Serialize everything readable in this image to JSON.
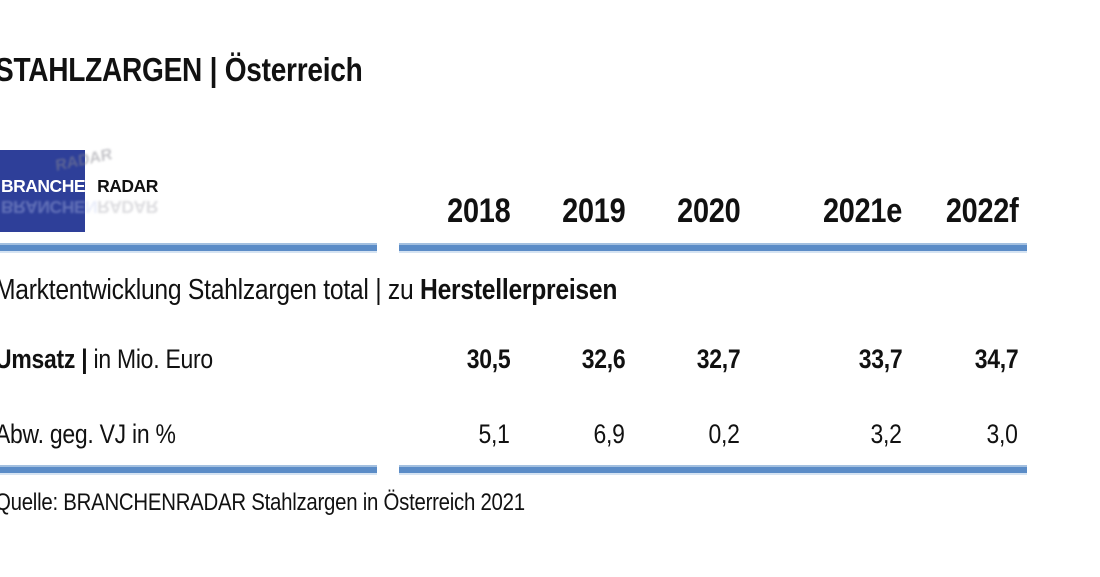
{
  "page": {
    "title": "STAHLZARGEN | Österreich",
    "source": "Quelle: BRANCHENRADAR Stahlzargen in Österreich 2021"
  },
  "logo": {
    "text_primary": "BRANCHEN",
    "text_secondary": "RADAR"
  },
  "table": {
    "years": [
      "2018",
      "2019",
      "2020",
      "2021e",
      "2022f"
    ],
    "section_header_normal": "Marktentwicklung Stahlzargen total | zu ",
    "section_header_bold": "Herstellerpreisen",
    "rows": [
      {
        "label_bold": "Umsatz | ",
        "label_normal": "in Mio. Euro",
        "values": [
          "30,5",
          "32,6",
          "32,7",
          "33,7",
          "34,7"
        ]
      },
      {
        "label_bold": "",
        "label_normal": "Abw. geg. VJ in %",
        "values": [
          "5,1",
          "6,9",
          "0,2",
          "3,2",
          "3,0"
        ]
      }
    ]
  },
  "colors": {
    "accent_line_blue": "#5b8cc7",
    "logo_blue": "#2e3f99",
    "text": "#111111"
  },
  "chart_data": {
    "type": "table",
    "title": "STAHLZARGEN | Österreich",
    "section": "Marktentwicklung Stahlzargen total | zu Herstellerpreisen",
    "categories": [
      "2018",
      "2019",
      "2020",
      "2021e",
      "2022f"
    ],
    "series": [
      {
        "name": "Umsatz | in Mio. Euro",
        "values": [
          30.5,
          32.6,
          32.7,
          33.7,
          34.7
        ]
      },
      {
        "name": "Abw. geg. VJ in %",
        "values": [
          5.1,
          6.9,
          0.2,
          3.2,
          3.0
        ]
      }
    ],
    "source": "Quelle: BRANCHENRADAR Stahlzargen in Österreich 2021"
  }
}
